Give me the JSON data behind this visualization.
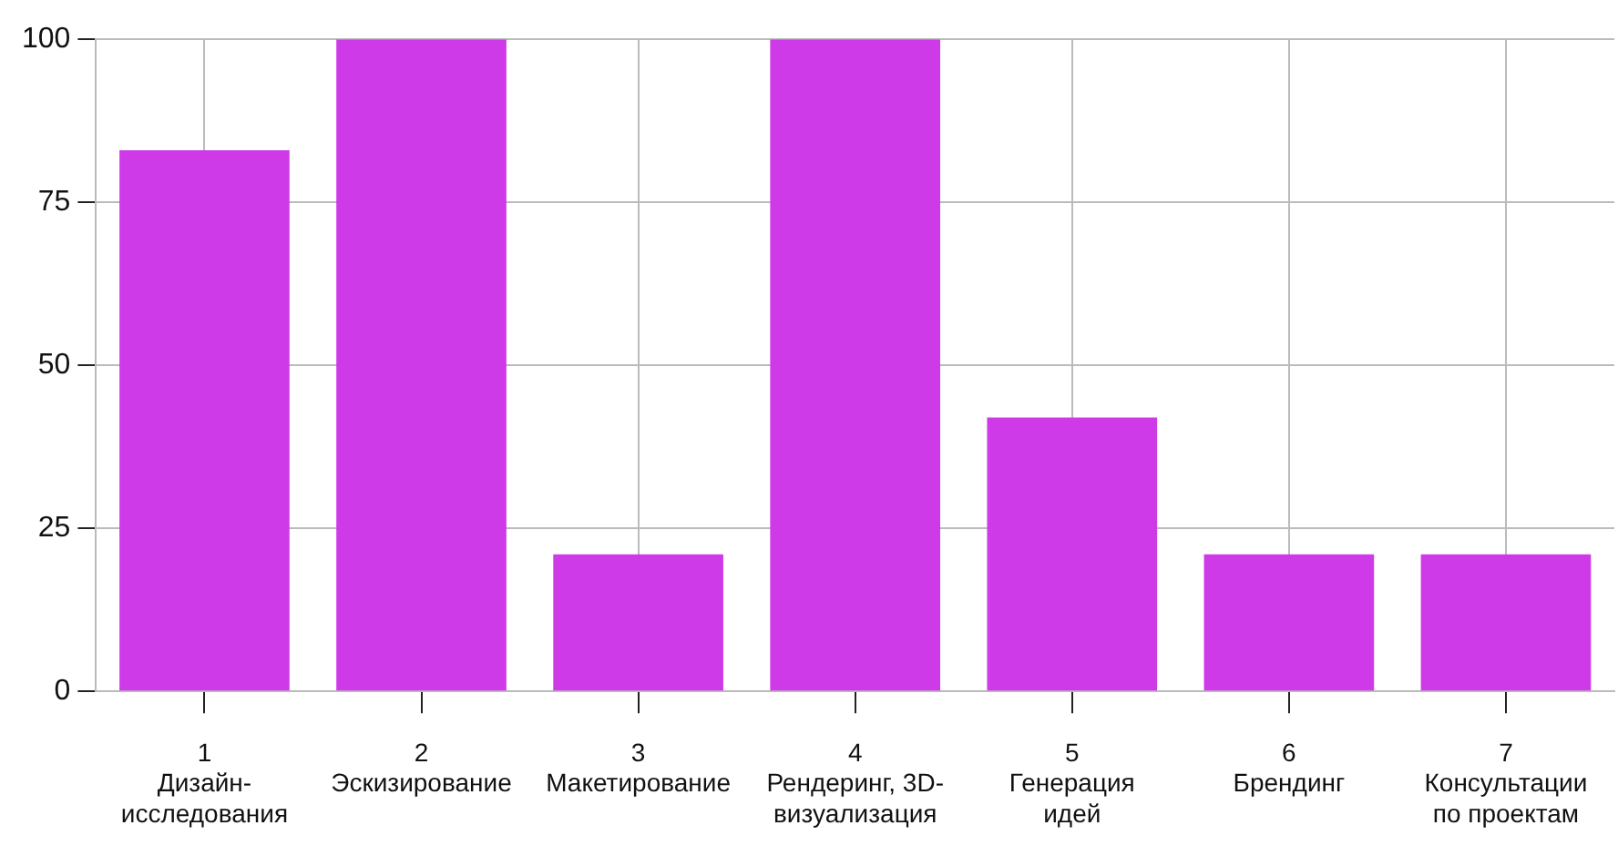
{
  "chart_data": {
    "type": "bar",
    "categories": [
      "1\nДизайн-\nисследования",
      "2\nЭскизирование",
      "3\nМакетирование",
      "4\nРендеринг, 3D-\nвизуализация",
      "5\nГенерация\nидей",
      "6\nБрендинг",
      "7\nКонсультации\nпо проектам"
    ],
    "values": [
      83,
      100,
      21,
      100,
      42,
      21,
      21
    ],
    "color": "#cf3ae8",
    "ylim": [
      0,
      100
    ],
    "yticks": [
      0,
      25,
      50,
      75,
      100
    ],
    "grid": true,
    "legend": false
  }
}
